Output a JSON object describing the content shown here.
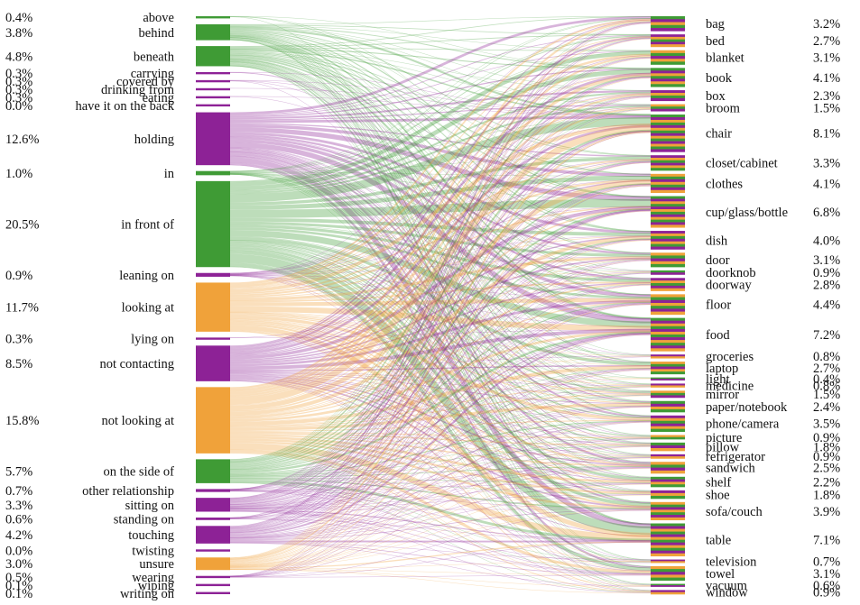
{
  "chart_data": {
    "type": "sankey",
    "title": "",
    "colors": {
      "green": "#3f9b35",
      "purple": "#8d2296",
      "orange": "#f0a23a"
    },
    "relationships": [
      {
        "label": "above",
        "percent": "0.4%",
        "value": 0.4,
        "color": "green"
      },
      {
        "label": "behind",
        "percent": "3.8%",
        "value": 3.8,
        "color": "green"
      },
      {
        "label": "beneath",
        "percent": "4.8%",
        "value": 4.8,
        "color": "green"
      },
      {
        "label": "carrying",
        "percent": "0.3%",
        "value": 0.3,
        "color": "purple"
      },
      {
        "label": "covered by",
        "percent": "0.3%",
        "value": 0.3,
        "color": "purple"
      },
      {
        "label": "drinking from",
        "percent": "0.3%",
        "value": 0.3,
        "color": "purple"
      },
      {
        "label": "eating",
        "percent": "0.3%",
        "value": 0.3,
        "color": "purple"
      },
      {
        "label": "have it on the back",
        "percent": "0.0%",
        "value": 0.0,
        "color": "purple"
      },
      {
        "label": "holding",
        "percent": "12.6%",
        "value": 12.6,
        "color": "purple"
      },
      {
        "label": "in",
        "percent": "1.0%",
        "value": 1.0,
        "color": "green"
      },
      {
        "label": "in front of",
        "percent": "20.5%",
        "value": 20.5,
        "color": "green"
      },
      {
        "label": "leaning on",
        "percent": "0.9%",
        "value": 0.9,
        "color": "purple"
      },
      {
        "label": "looking at",
        "percent": "11.7%",
        "value": 11.7,
        "color": "orange"
      },
      {
        "label": "lying on",
        "percent": "0.3%",
        "value": 0.3,
        "color": "purple"
      },
      {
        "label": "not contacting",
        "percent": "8.5%",
        "value": 8.5,
        "color": "purple"
      },
      {
        "label": "not looking at",
        "percent": "15.8%",
        "value": 15.8,
        "color": "orange"
      },
      {
        "label": "on the side of",
        "percent": "5.7%",
        "value": 5.7,
        "color": "green"
      },
      {
        "label": "other relationship",
        "percent": "0.7%",
        "value": 0.7,
        "color": "purple"
      },
      {
        "label": "sitting on",
        "percent": "3.3%",
        "value": 3.3,
        "color": "purple"
      },
      {
        "label": "standing on",
        "percent": "0.6%",
        "value": 0.6,
        "color": "purple"
      },
      {
        "label": "touching",
        "percent": "4.2%",
        "value": 4.2,
        "color": "purple"
      },
      {
        "label": "twisting",
        "percent": "0.0%",
        "value": 0.0,
        "color": "purple"
      },
      {
        "label": "unsure",
        "percent": "3.0%",
        "value": 3.0,
        "color": "orange"
      },
      {
        "label": "wearing",
        "percent": "0.5%",
        "value": 0.5,
        "color": "purple"
      },
      {
        "label": "wiping",
        "percent": "0.1%",
        "value": 0.1,
        "color": "purple"
      },
      {
        "label": "writing on",
        "percent": "0.1%",
        "value": 0.1,
        "color": "purple"
      }
    ],
    "objects": [
      {
        "label": "bag",
        "percent": "3.2%",
        "value": 3.2
      },
      {
        "label": "bed",
        "percent": "2.7%",
        "value": 2.7
      },
      {
        "label": "blanket",
        "percent": "3.1%",
        "value": 3.1
      },
      {
        "label": "book",
        "percent": "4.1%",
        "value": 4.1
      },
      {
        "label": "box",
        "percent": "2.3%",
        "value": 2.3
      },
      {
        "label": "broom",
        "percent": "1.5%",
        "value": 1.5
      },
      {
        "label": "chair",
        "percent": "8.1%",
        "value": 8.1
      },
      {
        "label": "closet/cabinet",
        "percent": "3.3%",
        "value": 3.3
      },
      {
        "label": "clothes",
        "percent": "4.1%",
        "value": 4.1
      },
      {
        "label": "cup/glass/bottle",
        "percent": "6.8%",
        "value": 6.8
      },
      {
        "label": "dish",
        "percent": "4.0%",
        "value": 4.0
      },
      {
        "label": "door",
        "percent": "3.1%",
        "value": 3.1
      },
      {
        "label": "doorknob",
        "percent": "0.9%",
        "value": 0.9
      },
      {
        "label": "doorway",
        "percent": "2.8%",
        "value": 2.8
      },
      {
        "label": "floor",
        "percent": "4.4%",
        "value": 4.4
      },
      {
        "label": "food",
        "percent": "7.2%",
        "value": 7.2
      },
      {
        "label": "groceries",
        "percent": "0.8%",
        "value": 0.8
      },
      {
        "label": "laptop",
        "percent": "2.7%",
        "value": 2.7
      },
      {
        "label": "light",
        "percent": "0.4%",
        "value": 0.4
      },
      {
        "label": "medicine",
        "percent": "0.8%",
        "value": 0.8
      },
      {
        "label": "mirror",
        "percent": "1.5%",
        "value": 1.5
      },
      {
        "label": "paper/notebook",
        "percent": "2.4%",
        "value": 2.4
      },
      {
        "label": "phone/camera",
        "percent": "3.5%",
        "value": 3.5
      },
      {
        "label": "picture",
        "percent": "0.9%",
        "value": 0.9
      },
      {
        "label": "pillow",
        "percent": "1.8%",
        "value": 1.8
      },
      {
        "label": "refrigerator",
        "percent": "0.9%",
        "value": 0.9
      },
      {
        "label": "sandwich",
        "percent": "2.5%",
        "value": 2.5
      },
      {
        "label": "shelf",
        "percent": "2.2%",
        "value": 2.2
      },
      {
        "label": "shoe",
        "percent": "1.8%",
        "value": 1.8
      },
      {
        "label": "sofa/couch",
        "percent": "3.9%",
        "value": 3.9
      },
      {
        "label": "table",
        "percent": "7.1%",
        "value": 7.1
      },
      {
        "label": "television",
        "percent": "0.7%",
        "value": 0.7
      },
      {
        "label": "towel",
        "percent": "3.1%",
        "value": 3.1
      },
      {
        "label": "vacuum",
        "percent": "0.6%",
        "value": 0.6
      },
      {
        "label": "window",
        "percent": "0.9%",
        "value": 0.9
      }
    ]
  }
}
